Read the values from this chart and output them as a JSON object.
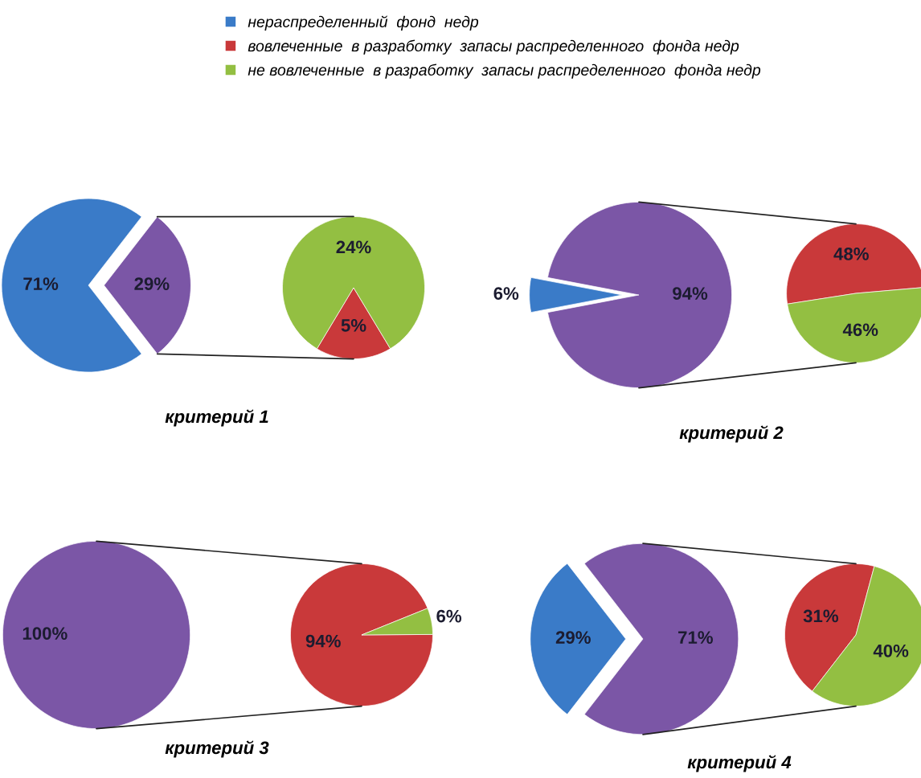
{
  "chart_data": [
    {
      "type": "pie",
      "title": "критерий 1",
      "legend": "top",
      "categories": [
        "нераспределенный  фонд  недр",
        null
      ],
      "values": [
        71,
        29
      ],
      "colors": [
        "#3a7bc8",
        "#7b56a6"
      ],
      "value_labels": [
        "71%",
        "29%"
      ]
    },
    {
      "type": "pie",
      "legend": "top",
      "categories": [
        "вовлеченные  в разработку  запасы распределенного  фонда недр",
        "не вовлеченные  в разработку  запасы распределенного  фонда недр"
      ],
      "values": [
        5,
        24
      ],
      "colors": [
        "#c9393a",
        "#93bf42"
      ],
      "value_labels": [
        "5%",
        "24%"
      ]
    },
    {
      "type": "pie",
      "title": "критерий 2",
      "categories": [
        null,
        null
      ],
      "values": [
        6,
        94
      ],
      "colors": [
        "#3a7bc8",
        "#7b56a6"
      ],
      "value_labels": [
        "6%",
        "94%"
      ]
    },
    {
      "type": "pie",
      "categories": [
        null,
        null
      ],
      "values": [
        48,
        46
      ],
      "colors": [
        "#c9393a",
        "#93bf42"
      ],
      "value_labels": [
        "48%",
        "46%"
      ]
    },
    {
      "type": "pie",
      "title": "критерий 3",
      "categories": [
        null
      ],
      "values": [
        100
      ],
      "colors": [
        "#7b56a6"
      ],
      "value_labels": [
        "100%"
      ]
    },
    {
      "type": "pie",
      "categories": [
        null,
        null
      ],
      "values": [
        94,
        6
      ],
      "colors": [
        "#c9393a",
        "#93bf42"
      ],
      "value_labels": [
        "94%",
        "6%"
      ]
    },
    {
      "type": "pie",
      "title": "критерий 4",
      "categories": [
        null,
        null
      ],
      "values": [
        29,
        71
      ],
      "colors": [
        "#3a7bc8",
        "#7b56a6"
      ],
      "value_labels": [
        "29%",
        "71%"
      ]
    },
    {
      "type": "pie",
      "categories": [
        null,
        null
      ],
      "values": [
        31,
        40
      ],
      "colors": [
        "#c9393a",
        "#93bf42"
      ],
      "value_labels": [
        "31%",
        "40%"
      ]
    }
  ]
}
